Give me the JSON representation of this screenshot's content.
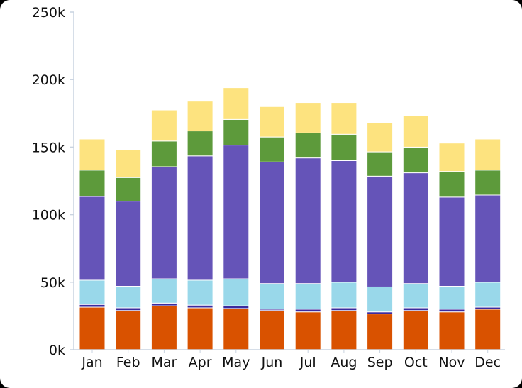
{
  "chart_data": {
    "type": "bar",
    "stacked": true,
    "title": "",
    "xlabel": "",
    "ylabel": "",
    "ylim": [
      0,
      250000
    ],
    "yticks": [
      0,
      50000,
      100000,
      150000,
      200000,
      250000
    ],
    "ytick_labels": [
      "0k",
      "50k",
      "100k",
      "150k",
      "200k",
      "250k"
    ],
    "grid": false,
    "legend": "none",
    "categories": [
      "Jan",
      "Feb",
      "Mar",
      "Apr",
      "May",
      "Jun",
      "Jul",
      "Aug",
      "Sep",
      "Oct",
      "Nov",
      "Dec"
    ],
    "series": [
      {
        "color": "#d95200",
        "values": [
          31500,
          29000,
          32500,
          31000,
          30500,
          29000,
          28000,
          29000,
          26500,
          29000,
          28000,
          30000
        ]
      },
      {
        "color": "#3b2b9e",
        "values": [
          2000,
          2000,
          2000,
          2000,
          2000,
          1000,
          2000,
          2000,
          1500,
          2000,
          2000,
          1500
        ]
      },
      {
        "color": "#99d8ea",
        "values": [
          18000,
          16000,
          18000,
          18500,
          20000,
          19000,
          19000,
          19000,
          18500,
          18000,
          17000,
          18500
        ]
      },
      {
        "color": "#6554b8",
        "values": [
          62000,
          63000,
          83000,
          92000,
          99000,
          90000,
          93000,
          90000,
          82000,
          82000,
          66000,
          64500
        ]
      },
      {
        "color": "#5d9a3b",
        "values": [
          19500,
          17500,
          19000,
          18500,
          19000,
          18500,
          18500,
          19500,
          18000,
          19000,
          19000,
          18500
        ]
      },
      {
        "color": "#fde37f",
        "values": [
          23000,
          20500,
          23000,
          22000,
          23500,
          22500,
          22500,
          23500,
          21500,
          23500,
          21000,
          23000
        ]
      }
    ]
  }
}
